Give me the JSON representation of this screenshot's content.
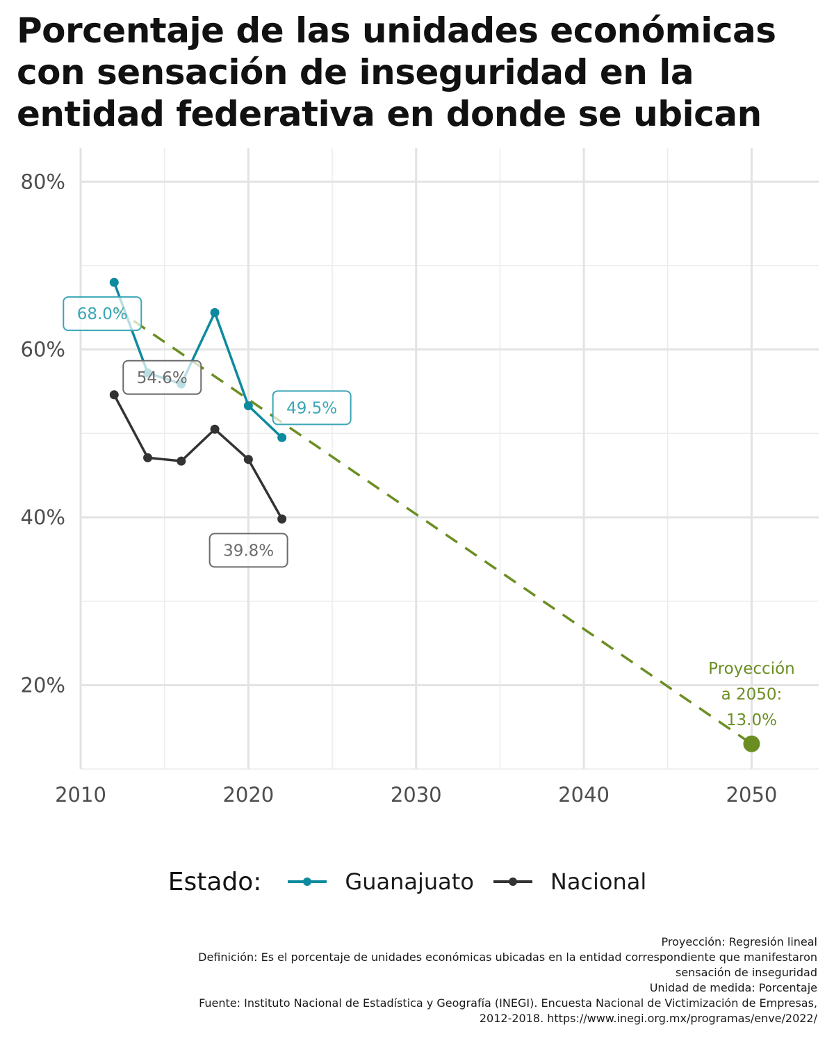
{
  "title_lines": [
    "Porcentaje de las unidades económicas",
    "con sensación de inseguridad en la",
    "entidad federativa en donde se ubican"
  ],
  "chart_data": {
    "type": "line",
    "xlim": [
      2010,
      2054
    ],
    "ylim": [
      10,
      84
    ],
    "x_ticks": [
      2010,
      2020,
      2030,
      2040,
      2050
    ],
    "x_tick_labels": [
      "2010",
      "2020",
      "2030",
      "2040",
      "2050"
    ],
    "y_ticks": [
      20,
      40,
      60,
      80
    ],
    "y_tick_labels": [
      "20%",
      "40%",
      "60%",
      "80%"
    ],
    "grid": true,
    "series": [
      {
        "name": "Guanajuato",
        "color": "#0e8a9f",
        "label_color": "#3aa6b6",
        "x": [
          2012,
          2014,
          2016,
          2018,
          2020,
          2022
        ],
        "values": [
          68.0,
          57.2,
          55.9,
          64.4,
          53.3,
          49.5
        ]
      },
      {
        "name": "Nacional",
        "color": "#333333",
        "label_color": "#6b6b6b",
        "x": [
          2012,
          2014,
          2016,
          2018,
          2020,
          2022
        ],
        "values": [
          54.6,
          47.1,
          46.7,
          50.5,
          46.9,
          39.8
        ]
      }
    ],
    "labels": [
      {
        "series": "Guanajuato",
        "x": 2012,
        "y": 68.0,
        "text": "68.0%"
      },
      {
        "series": "Guanajuato",
        "x": 2022,
        "y": 49.5,
        "text": "49.5%"
      },
      {
        "series": "Nacional",
        "x": 2012,
        "y": 54.6,
        "text": "54.6%"
      },
      {
        "series": "Nacional",
        "x": 2022,
        "y": 39.8,
        "text": "39.8%"
      }
    ],
    "projection": {
      "method": "Regresión lineal",
      "color": "#6b8e23",
      "x": [
        2012,
        2050
      ],
      "values": [
        65.0,
        13.0
      ],
      "endpoint": {
        "x": 2050,
        "y": 13.0
      },
      "label_lines": [
        "Proyección",
        "a 2050:",
        "13.0%"
      ]
    }
  },
  "legend": {
    "title": "Estado:",
    "items": [
      {
        "label": "Guanajuato",
        "color": "#0e8a9f"
      },
      {
        "label": "Nacional",
        "color": "#333333"
      }
    ]
  },
  "caption_lines": [
    "Proyección: Regresión lineal",
    "Definición: Es el porcentaje de unidades económicas ubicadas en la entidad correspondiente que manifestaron",
    "sensación de inseguridad",
    "Unidad de medida: Porcentaje",
    "Fuente: Instituto Nacional de Estadística y Geografía (INEGI). Encuesta Nacional de Victimización de Empresas,",
    "2012-2018. https://www.inegi.org.mx/programas/enve/2022/"
  ]
}
